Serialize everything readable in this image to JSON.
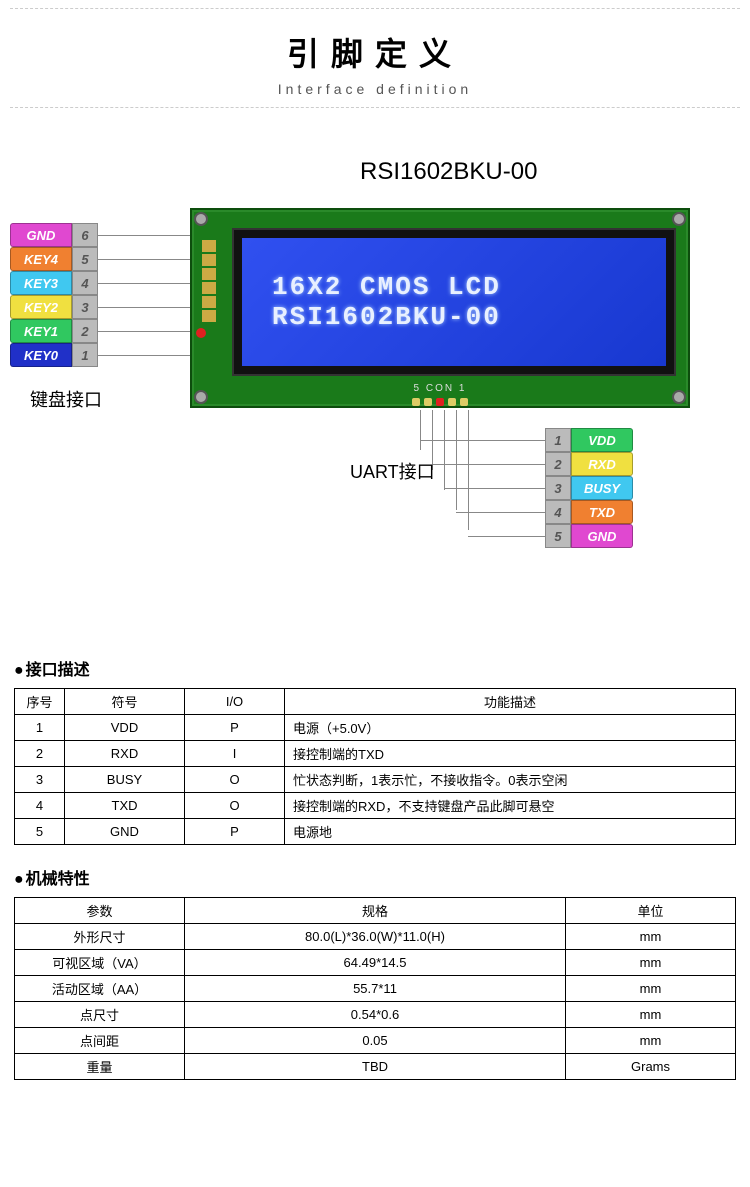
{
  "header": {
    "title_cn": "引脚定义",
    "title_en": "Interface definition"
  },
  "diagram": {
    "model": "RSI1602BKU-00",
    "lcd_line1": "16X2 CMOS LCD",
    "lcd_line2": "RSI1602BKU-00",
    "keyboard_label": "键盘接口",
    "uart_label": "UART接口",
    "con_text": "5  CON  1",
    "pcb_color": "#1a7a1a",
    "lcd_bg": "#2040e0",
    "lcd_text_color": "#e8f0ff",
    "left_pins": [
      {
        "name": "GND",
        "num": "6",
        "bg": "#e048d0"
      },
      {
        "name": "KEY4",
        "num": "5",
        "bg": "#f08030"
      },
      {
        "name": "KEY3",
        "num": "4",
        "bg": "#40c8f0"
      },
      {
        "name": "KEY2",
        "num": "3",
        "bg": "#f0e040"
      },
      {
        "name": "KEY1",
        "num": "2",
        "bg": "#30c860"
      },
      {
        "name": "KEY0",
        "num": "1",
        "bg": "#2030c8"
      }
    ],
    "right_pins": [
      {
        "num": "1",
        "name": "VDD",
        "bg": "#30c860"
      },
      {
        "num": "2",
        "name": "RXD",
        "bg": "#f0e040"
      },
      {
        "num": "3",
        "name": "BUSY",
        "bg": "#40c8f0"
      },
      {
        "num": "4",
        "name": "TXD",
        "bg": "#f08030"
      },
      {
        "num": "5",
        "name": "GND",
        "bg": "#e048d0"
      }
    ]
  },
  "interface_table": {
    "title": "接口描述",
    "headers": [
      "序号",
      "符号",
      "I/O",
      "功能描述"
    ],
    "rows": [
      [
        "1",
        "VDD",
        "P",
        "电源（+5.0V）"
      ],
      [
        "2",
        "RXD",
        "I",
        "接控制端的TXD"
      ],
      [
        "3",
        "BUSY",
        "O",
        "忙状态判断，1表示忙，不接收指令。0表示空闲"
      ],
      [
        "4",
        "TXD",
        "O",
        "接控制端的RXD，不支持键盘产品此脚可悬空"
      ],
      [
        "5",
        "GND",
        "P",
        "电源地"
      ]
    ]
  },
  "mech_table": {
    "title": "机械特性",
    "headers": [
      "参数",
      "规格",
      "单位"
    ],
    "rows": [
      [
        "外形尺寸",
        "80.0(L)*36.0(W)*11.0(H)",
        "mm"
      ],
      [
        "可视区域（VA）",
        "64.49*14.5",
        "mm"
      ],
      [
        "活动区域（AA）",
        "55.7*11",
        "mm"
      ],
      [
        "点尺寸",
        "0.54*0.6",
        "mm"
      ],
      [
        "点间距",
        "0.05",
        "mm"
      ],
      [
        "重量",
        "TBD",
        "Grams"
      ]
    ]
  }
}
